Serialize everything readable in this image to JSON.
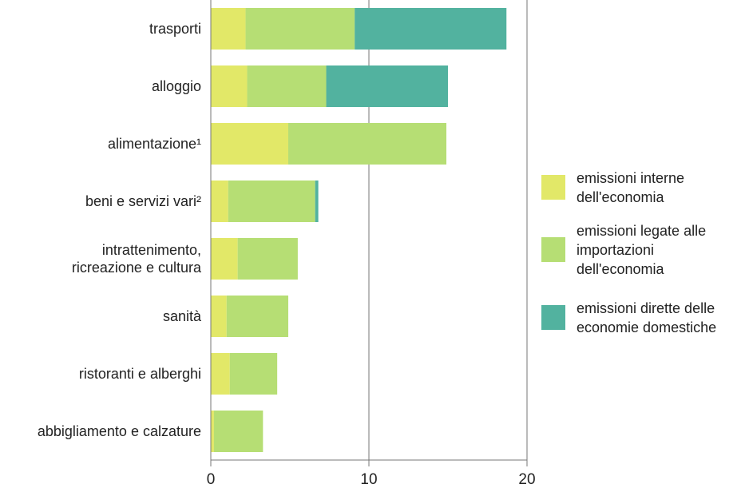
{
  "chart_data": {
    "type": "bar",
    "orientation": "horizontal",
    "stacked": true,
    "title": "",
    "xlabel": "",
    "ylabel": "",
    "xlim": [
      0,
      20
    ],
    "xticks": [
      0,
      10,
      20
    ],
    "grid": true,
    "legend_position": "right",
    "categories": [
      "trasporti",
      "alloggio",
      "alimentazione¹",
      "beni e servizi vari²",
      "intrattenimento,\nricreazione e cultura",
      "sanità",
      "ristoranti e alberghi",
      "abbigliamento e calzature"
    ],
    "series": [
      {
        "name": "emissioni interne\ndell'economia",
        "color": "#e2e868",
        "values": [
          2.2,
          2.3,
          4.9,
          1.1,
          1.7,
          1.0,
          1.2,
          0.2
        ]
      },
      {
        "name": "emissioni legate alle\nimportazioni\ndell'economia",
        "color": "#b6de74",
        "values": [
          6.9,
          5.0,
          10.0,
          5.5,
          3.8,
          3.9,
          3.0,
          3.1
        ]
      },
      {
        "name": "emissioni dirette delle\neconomie domestiche",
        "color": "#52b29f",
        "values": [
          9.6,
          7.7,
          0.0,
          0.2,
          0.0,
          0.0,
          0.0,
          0.0
        ]
      }
    ]
  }
}
